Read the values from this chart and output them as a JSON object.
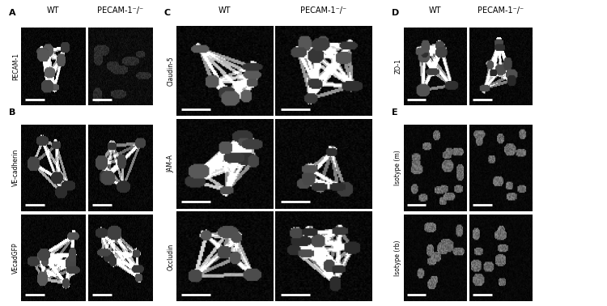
{
  "background_color": "#ffffff",
  "panel_bg": "#000000",
  "label_color": "#000000",
  "panel_labels": [
    "A",
    "B",
    "C",
    "D",
    "E"
  ],
  "col_headers_ACD": [
    "WT",
    "PECAM-1⁻/⁻"
  ],
  "row_labels_A": [
    "PECAM-1"
  ],
  "row_labels_B": [
    "VE-cadherin",
    "VEcadGFP"
  ],
  "row_labels_C": [
    "Claudin-5",
    "JAM-A",
    "Occludin"
  ],
  "row_labels_D": [
    "ZO-1"
  ],
  "row_labels_E": [
    "Isotype (m)",
    "Isotype (rb)"
  ],
  "title_fontsize": 7,
  "label_fontsize": 8,
  "rotated_label_fontsize": 5.5
}
